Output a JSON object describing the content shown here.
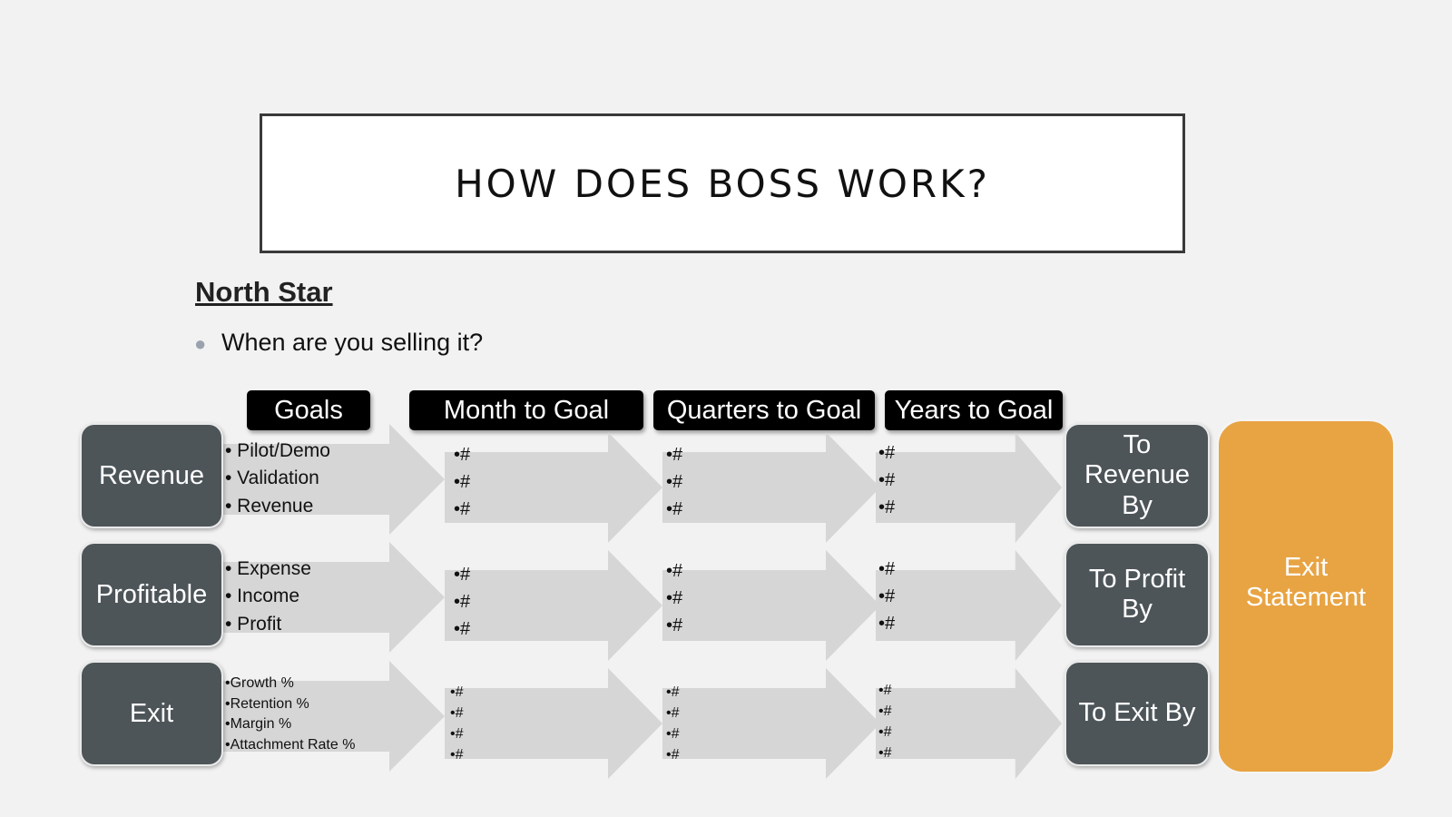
{
  "title": "HOW DOES BOSS WORK?",
  "subtitle": "North Star",
  "bullet": "When are you selling it?",
  "headers": {
    "goals": "Goals",
    "month": "Month to Goal",
    "quarters": "Quarters to Goal",
    "years": "Years to Goal"
  },
  "rows": [
    {
      "label": "Revenue",
      "goals": [
        "• Pilot/Demo",
        "• Validation",
        "• Revenue"
      ],
      "month": [
        "•#",
        "•#",
        "•#"
      ],
      "quarters": [
        "•#",
        "•#",
        "•#"
      ],
      "years": [
        "•#",
        "•#",
        "•#"
      ],
      "end_label": "To Revenue By"
    },
    {
      "label": "Profitable",
      "goals": [
        "• Expense",
        "• Income",
        "• Profit"
      ],
      "month": [
        "•#",
        "•#",
        "•#"
      ],
      "quarters": [
        "•#",
        "•#",
        "•#"
      ],
      "years": [
        "•#",
        "•#",
        "•#"
      ],
      "end_label": "To Profit By"
    },
    {
      "label": "Exit",
      "goals": [
        "•Growth %",
        "•Retention %",
        "•Margin %",
        "•Attachment Rate %"
      ],
      "month": [
        "•#",
        "•#",
        "•#",
        "•#"
      ],
      "quarters": [
        "•#",
        "•#",
        "•#",
        "•#"
      ],
      "years": [
        "•#",
        "•#",
        "•#",
        "•#"
      ],
      "end_label": "To Exit By"
    }
  ],
  "exit_statement": "Exit Statement"
}
